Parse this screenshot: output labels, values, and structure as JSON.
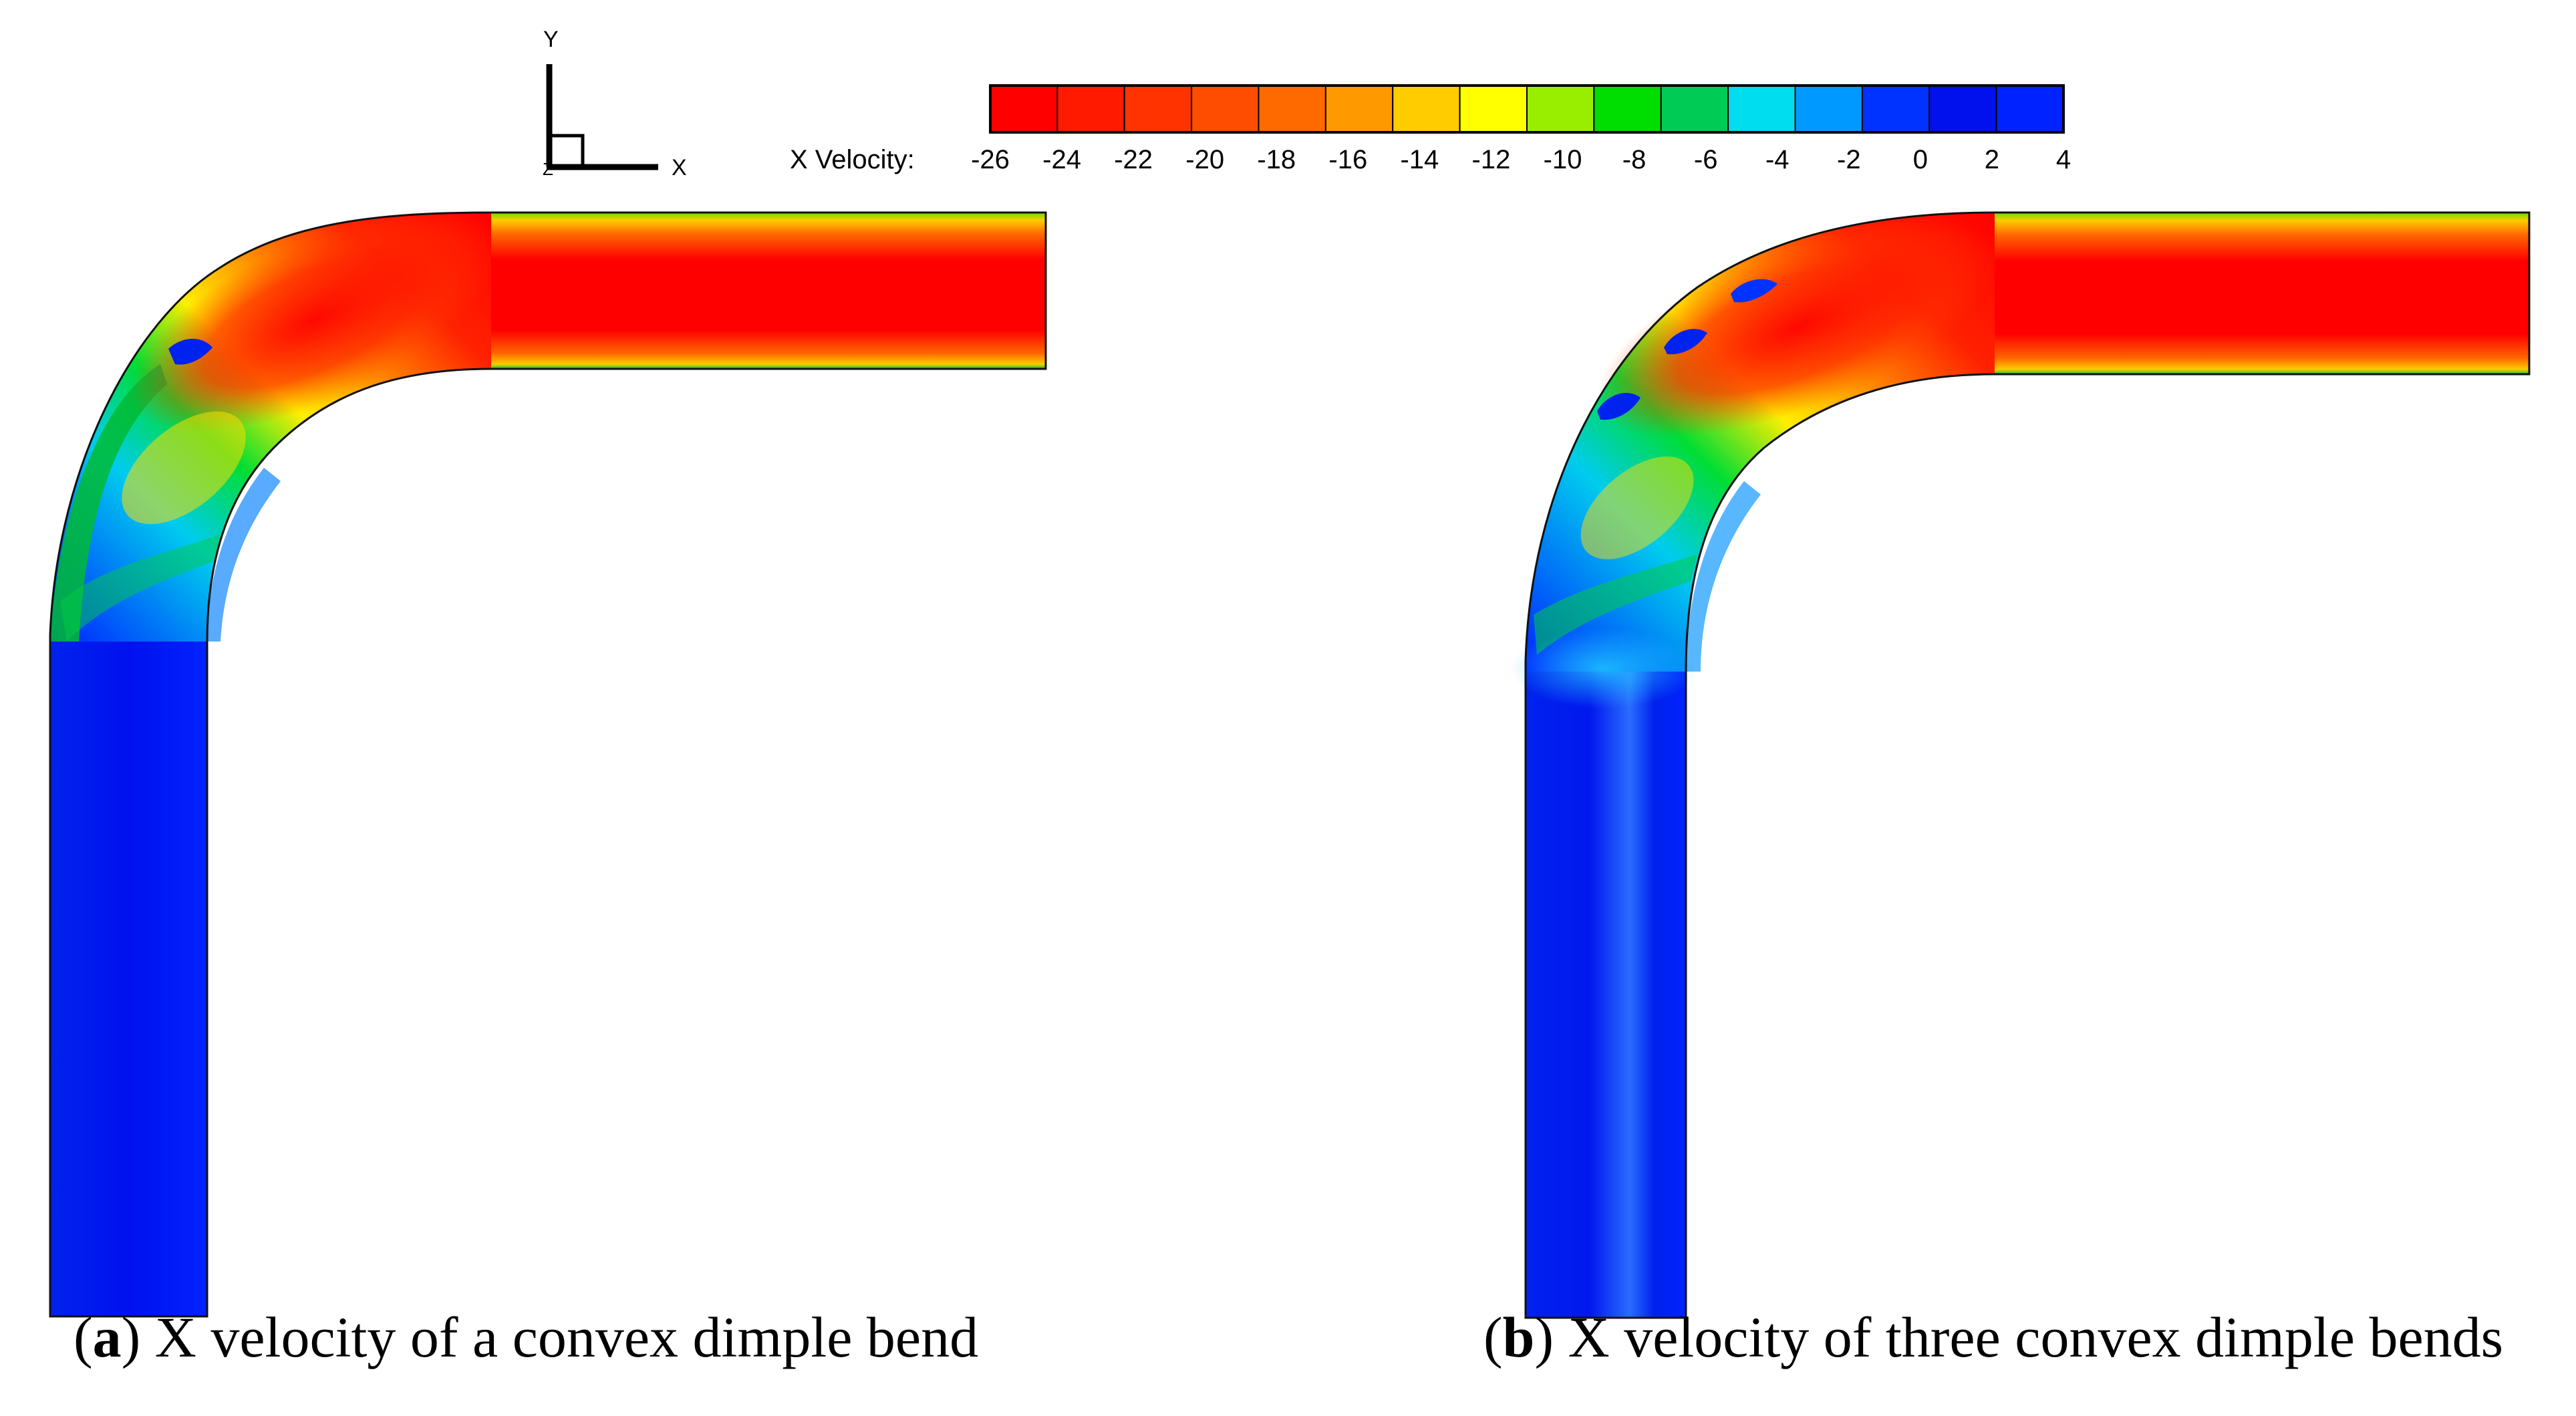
{
  "axes_triad": {
    "y_label": "Y",
    "x_label": "X",
    "z_label": "Z"
  },
  "legend": {
    "title": "X Velocity:",
    "levels": [
      "-26",
      "-24",
      "-22",
      "-20",
      "-18",
      "-16",
      "-14",
      "-12",
      "-10",
      "-8",
      "-6",
      "-4",
      "-2",
      "0",
      "2",
      "4"
    ],
    "colors": [
      "#ff0000",
      "#ff1a00",
      "#ff3300",
      "#ff4d00",
      "#ff6a00",
      "#ff9900",
      "#ffcc00",
      "#ffff00",
      "#99ee00",
      "#00dd00",
      "#00cc55",
      "#00ddee",
      "#0099ff",
      "#0033ff",
      "#0011ee",
      "#0022ff"
    ]
  },
  "panels": [
    {
      "id": "a",
      "caption_letter": "a",
      "caption_text": "X velocity of a convex dimple bend"
    },
    {
      "id": "b",
      "caption_letter": "b",
      "caption_text": "X velocity of three convex dimple bends"
    }
  ]
}
